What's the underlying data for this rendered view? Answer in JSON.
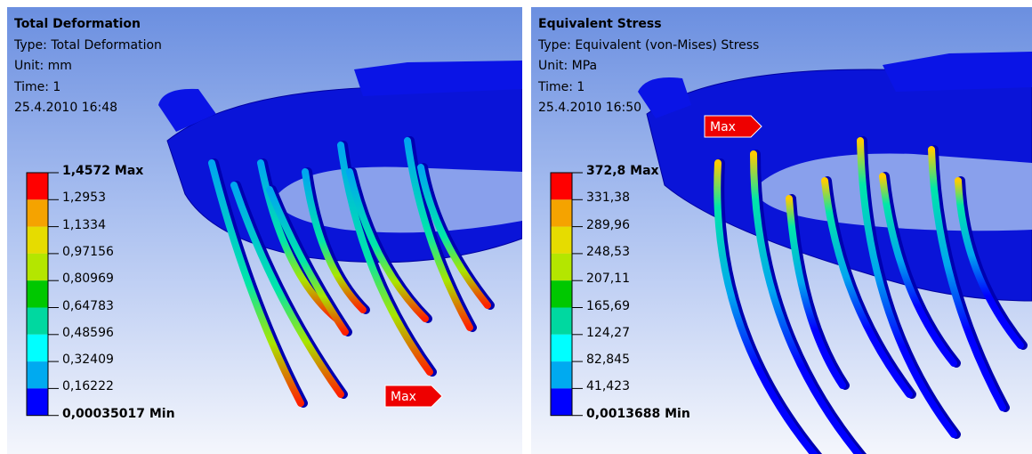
{
  "panels": [
    {
      "title": "Total Deformation",
      "type": "Type: Total Deformation",
      "unit": "Unit: mm",
      "time": "Time: 1",
      "date": "25.4.2010 16:48",
      "legend": [
        "1,4572 Max",
        "1,2953",
        "1,1334",
        "0,97156",
        "0,80969",
        "0,64783",
        "0,48596",
        "0,32409",
        "0,16222",
        "0,00035017 Min"
      ],
      "probe": "Max"
    },
    {
      "title": "Equivalent Stress",
      "type": "Type: Equivalent (von-Mises) Stress",
      "unit": "Unit: MPa",
      "time": "Time: 1",
      "date": "25.4.2010 16:50",
      "legend": [
        "372,8 Max",
        "331,38",
        "289,96",
        "248,53",
        "207,11",
        "165,69",
        "124,27",
        "82,845",
        "41,423",
        "0,0013688 Min"
      ],
      "probe": "Max"
    }
  ]
}
